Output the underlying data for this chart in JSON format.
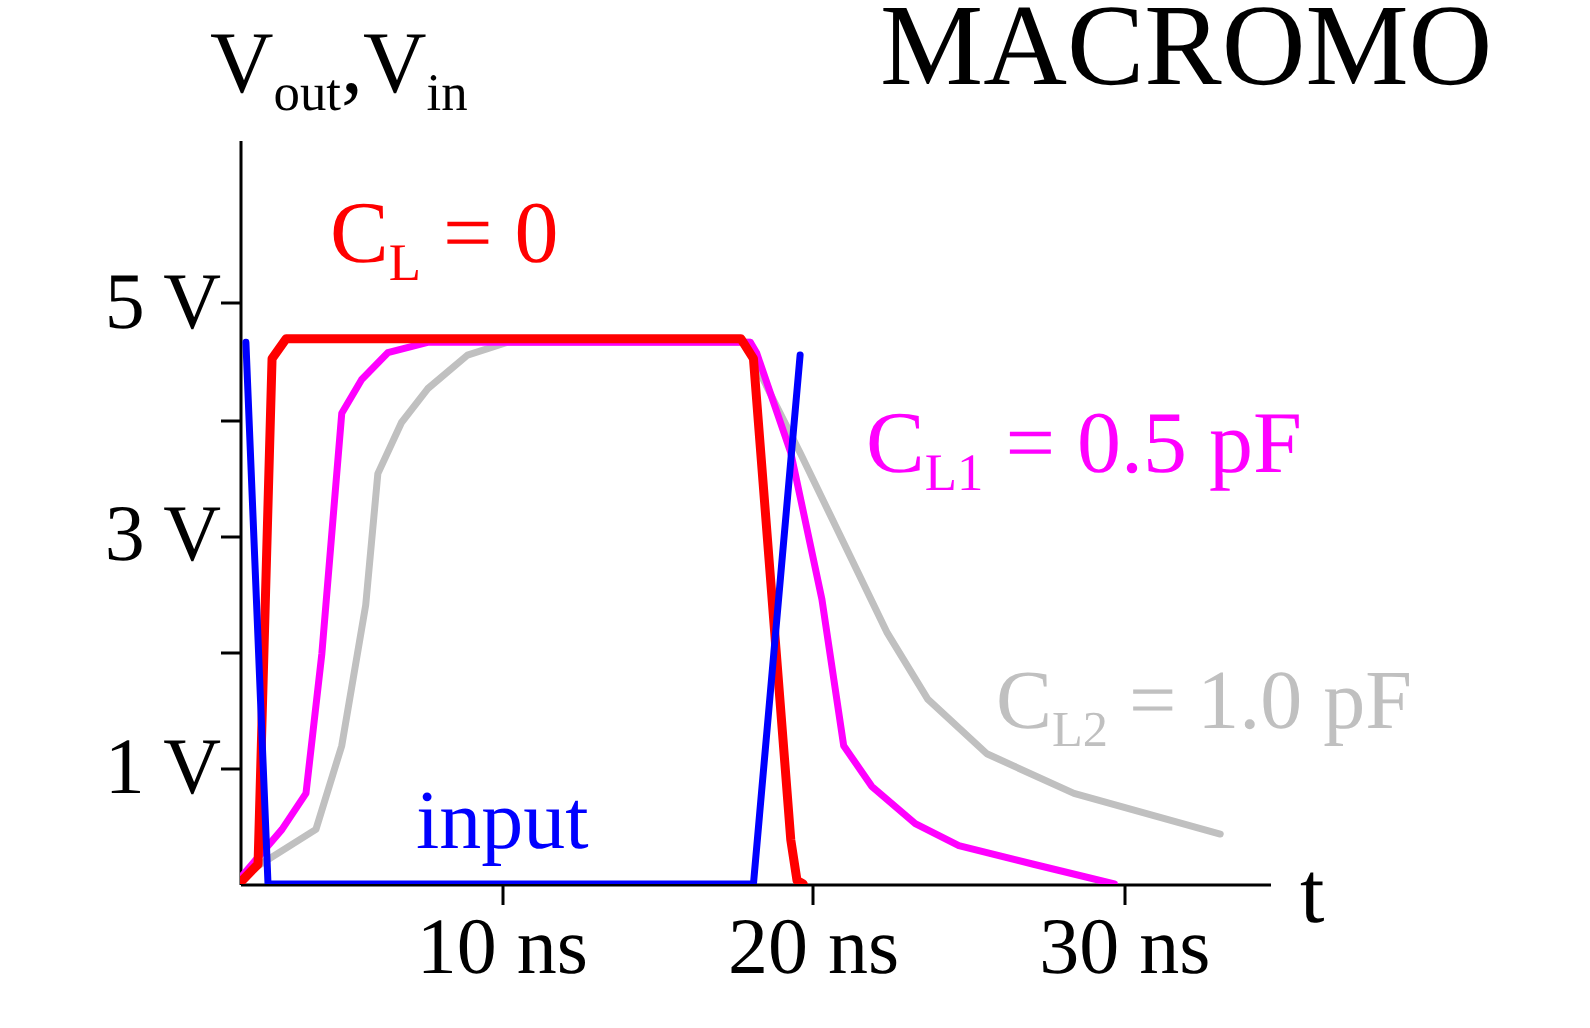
{
  "chart_data": {
    "type": "line",
    "title": "MACROMO",
    "xlabel": "t",
    "ylabel": "V$_{out}$,V$_{in}$",
    "xlim": [
      1.6,
      34.7
    ],
    "ylim": [
      0,
      6.4
    ],
    "xticks": [
      {
        "value": 10,
        "label": "10 ns"
      },
      {
        "value": 20,
        "label": "20 ns"
      },
      {
        "value": 30,
        "label": "30 ns"
      }
    ],
    "yticks": [
      {
        "value": 1,
        "label": "1 V"
      },
      {
        "value": 2,
        "label": null
      },
      {
        "value": 3,
        "label": "3 V"
      },
      {
        "value": 4,
        "label": null
      },
      {
        "value": 5,
        "label": "5 V"
      }
    ],
    "grid": false,
    "line_style": "solid",
    "series": [
      {
        "name": "C$_{L2}$ = 1.0 pF",
        "color": "#c0c0c0",
        "x": [
          1.67,
          4.04,
          4.87,
          5.64,
          6.03,
          6.79,
          7.63,
          8.91,
          10.2,
          18.0,
          18.3,
          19.6,
          22.4,
          23.7,
          25.6,
          28.4,
          33.1
        ],
        "values": [
          0.07,
          0.47,
          1.19,
          2.4,
          3.53,
          3.97,
          4.26,
          4.55,
          4.66,
          4.66,
          4.4,
          3.71,
          2.16,
          1.59,
          1.12,
          0.78,
          0.43
        ]
      },
      {
        "name": "C$_{L1}$ = 0.5 pF",
        "color": "#ff00ff",
        "x": [
          1.67,
          2.95,
          3.72,
          4.23,
          4.87,
          5.51,
          6.35,
          7.63,
          18.0,
          18.2,
          19.3,
          20.3,
          21.0,
          21.9,
          23.3,
          24.7,
          27.1,
          29.7
        ],
        "values": [
          0.07,
          0.47,
          0.78,
          1.98,
          4.05,
          4.34,
          4.57,
          4.66,
          4.66,
          4.57,
          3.71,
          2.45,
          1.19,
          0.84,
          0.52,
          0.33,
          0.17,
          0.0
        ]
      },
      {
        "name": "C$_{L}$ = 0",
        "color": "#ff0000",
        "x": [
          1.67,
          2.18,
          2.63,
          3.08,
          17.7,
          18.1,
          19.3,
          19.5,
          19.7
        ],
        "values": [
          0.03,
          0.17,
          4.52,
          4.69,
          4.69,
          4.52,
          0.38,
          0.03,
          0.0
        ]
      },
      {
        "name": "input",
        "color": "#0000ff",
        "x": [
          1.79,
          2.5,
          18.1,
          19.6
        ],
        "values": [
          4.66,
          0.0,
          0.0,
          4.55
        ]
      }
    ]
  }
}
